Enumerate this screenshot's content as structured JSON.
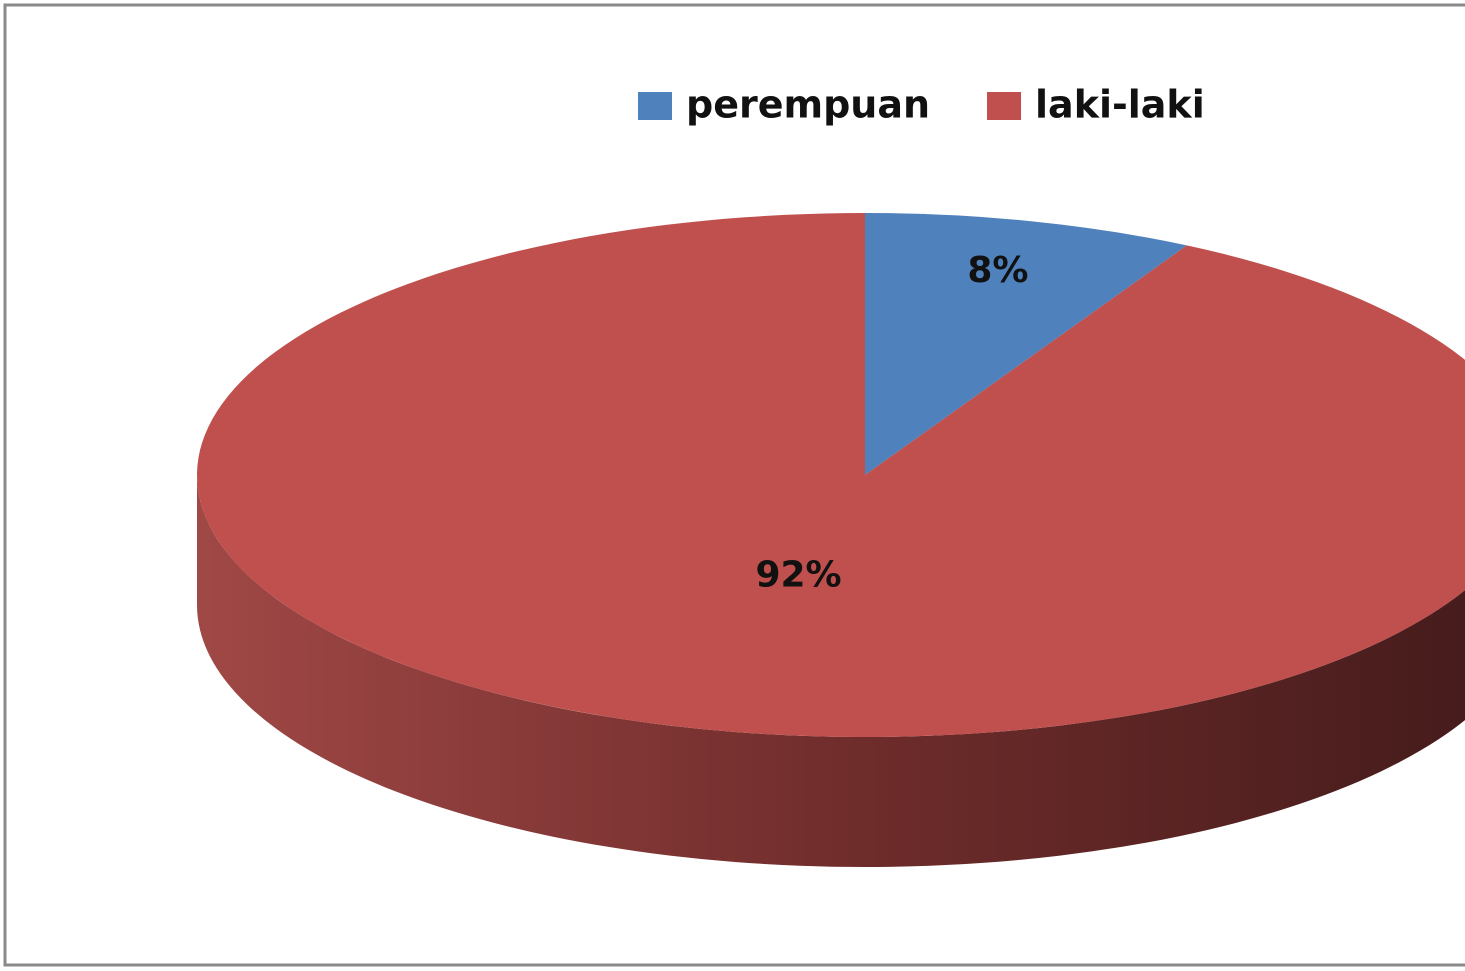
{
  "chart_data": {
    "type": "pie",
    "categories": [
      "perempuan",
      "laki-laki"
    ],
    "values": [
      8,
      92
    ],
    "value_labels": [
      "8%",
      "92%"
    ],
    "colors": [
      "#4f81bd",
      "#c0504d"
    ],
    "legend": "top",
    "three_d": true
  }
}
